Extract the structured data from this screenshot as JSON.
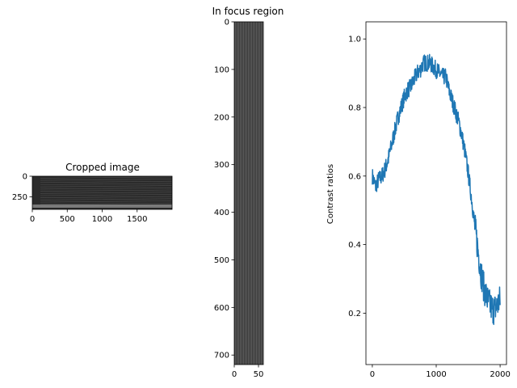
{
  "figure": {
    "panels": [
      {
        "title": "Cropped image",
        "kind": "image"
      },
      {
        "title": "In focus region",
        "kind": "image"
      },
      {
        "title": "",
        "kind": "line"
      }
    ]
  },
  "chart_data": [
    {
      "type": "heatmap",
      "title": "Cropped image",
      "xlabel": "",
      "ylabel": "",
      "xlim": [
        0,
        2000
      ],
      "ylim": [
        400,
        0
      ],
      "x_ticks": [
        "0",
        "500",
        "1000",
        "1500"
      ],
      "y_ticks": [
        "0",
        "250"
      ],
      "colormap": "gray"
    },
    {
      "type": "heatmap",
      "title": "In focus region",
      "xlabel": "",
      "ylabel": "",
      "xlim": [
        0,
        60
      ],
      "ylim": [
        720,
        0
      ],
      "x_ticks": [
        "0",
        "50"
      ],
      "y_ticks": [
        "0",
        "100",
        "200",
        "300",
        "400",
        "500",
        "600",
        "700"
      ],
      "colormap": "gray"
    },
    {
      "type": "line",
      "title": "",
      "xlabel": "",
      "ylabel": "Contrast ratios",
      "xlim": [
        -100,
        2100
      ],
      "ylim": [
        0.05,
        1.05
      ],
      "x_ticks": [
        "0",
        "1000",
        "2000"
      ],
      "y_ticks": [
        "0.2",
        "0.4",
        "0.6",
        "0.8",
        "1.0"
      ],
      "color": "#1f77b4",
      "series": [
        {
          "x": [
            0,
            50,
            100,
            150,
            200,
            250,
            300,
            350,
            400,
            450,
            500,
            550,
            600,
            650,
            700,
            750,
            800,
            850,
            900,
            950,
            1000,
            1050,
            1100,
            1150,
            1200,
            1250,
            1300,
            1350,
            1400,
            1450,
            1500,
            1550,
            1600,
            1650,
            1700,
            1750,
            1800,
            1850,
            1900,
            1950,
            2000
          ],
          "y": [
            0.6,
            0.57,
            0.59,
            0.6,
            0.62,
            0.65,
            0.69,
            0.73,
            0.77,
            0.8,
            0.83,
            0.85,
            0.86,
            0.88,
            0.9,
            0.91,
            0.93,
            0.93,
            0.93,
            0.92,
            0.91,
            0.9,
            0.89,
            0.89,
            0.85,
            0.82,
            0.79,
            0.76,
            0.72,
            0.67,
            0.61,
            0.54,
            0.46,
            0.39,
            0.32,
            0.27,
            0.24,
            0.22,
            0.21,
            0.22,
            0.24
          ]
        }
      ]
    }
  ]
}
